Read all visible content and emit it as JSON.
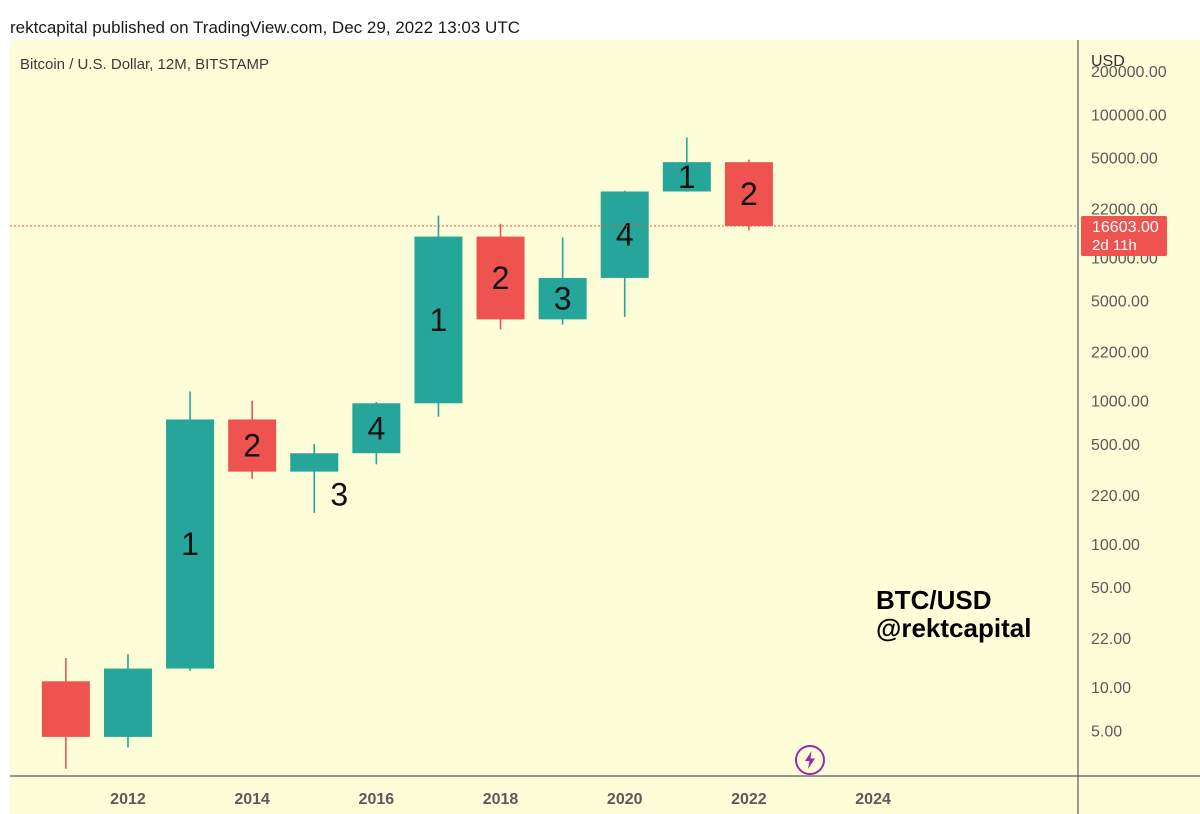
{
  "header": {
    "publisher": "rektcapital published on TradingView.com, Dec 29, 2022 13:03 UTC"
  },
  "symbol_label": "Bitcoin / U.S. Dollar, 12M, BITSTAMP",
  "watermark": {
    "line1": "BTC/USD",
    "line2": "@rektcapital"
  },
  "badge_icon": "lightning-bolt-icon",
  "colors": {
    "background": "#fdfdd8",
    "up": "#26a69a",
    "down": "#ef5350",
    "axis": "#5a5a5a",
    "label_bg": "#ef5350"
  },
  "chart_data": {
    "type": "candlestick",
    "title": "Bitcoin / U.S. Dollar, 12M, BITSTAMP",
    "y_scale": "log",
    "y_axis_unit": "USD",
    "y_ticks": [
      "200000.00",
      "100000.00",
      "50000.00",
      "22000.00",
      "10000.00",
      "5000.00",
      "2200.00",
      "1000.00",
      "500.00",
      "220.00",
      "100.00",
      "50.00",
      "22.00",
      "10.00",
      "5.00"
    ],
    "x_ticks": [
      "2012",
      "2014",
      "2016",
      "2018",
      "2020",
      "2022",
      "2024"
    ],
    "x_range": [
      2010.1,
      2027.3
    ],
    "y_range": [
      2.4,
      330000
    ],
    "current_price": {
      "value": 16603,
      "label": "16603.00",
      "countdown": "2d 11h"
    },
    "candles": [
      {
        "year": 2011,
        "open": 11,
        "high": 16,
        "low": 2.7,
        "close": 4.5,
        "label": ""
      },
      {
        "year": 2012,
        "open": 4.5,
        "high": 17,
        "low": 3.8,
        "close": 13.5,
        "label": ""
      },
      {
        "year": 2013,
        "open": 13.5,
        "high": 1160,
        "low": 13,
        "close": 740,
        "label": "1"
      },
      {
        "year": 2014,
        "open": 740,
        "high": 1000,
        "low": 285,
        "close": 320,
        "label": "2"
      },
      {
        "year": 2015,
        "open": 320,
        "high": 500,
        "low": 165,
        "close": 430,
        "label": "3"
      },
      {
        "year": 2016,
        "open": 430,
        "high": 980,
        "low": 360,
        "close": 960,
        "label": "4"
      },
      {
        "year": 2017,
        "open": 960,
        "high": 19600,
        "low": 775,
        "close": 14000,
        "label": "1"
      },
      {
        "year": 2018,
        "open": 14000,
        "high": 17200,
        "low": 3150,
        "close": 3700,
        "label": "2"
      },
      {
        "year": 2019,
        "open": 3700,
        "high": 13800,
        "low": 3400,
        "close": 7200,
        "label": "3"
      },
      {
        "year": 2020,
        "open": 7200,
        "high": 29300,
        "low": 3850,
        "close": 28900,
        "label": "4"
      },
      {
        "year": 2021,
        "open": 28900,
        "high": 69000,
        "low": 28800,
        "close": 46300,
        "label": "1"
      },
      {
        "year": 2022,
        "open": 46300,
        "high": 48200,
        "low": 15500,
        "close": 16603,
        "label": "2"
      }
    ]
  }
}
